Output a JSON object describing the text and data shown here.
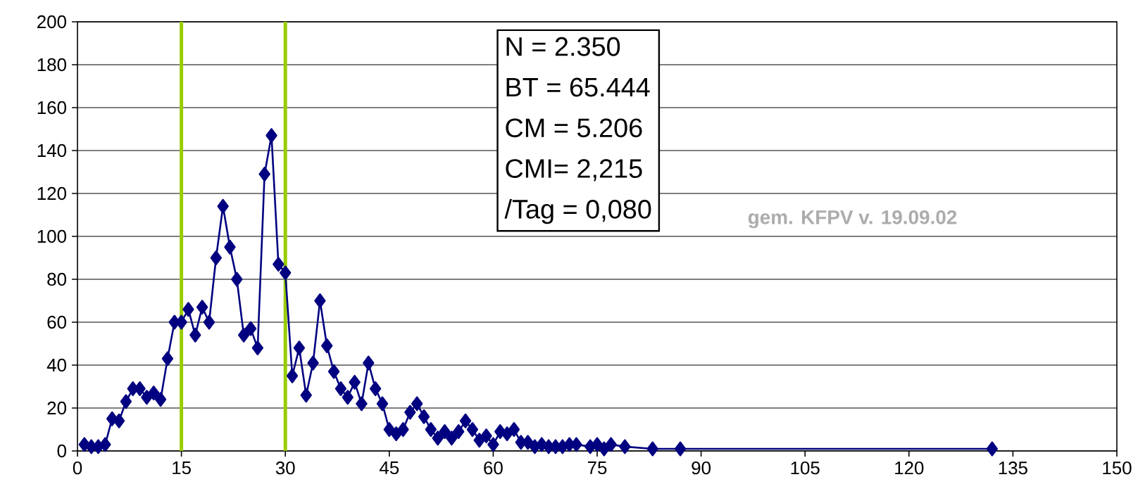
{
  "chart_data": {
    "type": "line",
    "x": [
      1,
      2,
      3,
      4,
      5,
      6,
      7,
      8,
      9,
      10,
      11,
      12,
      13,
      14,
      15,
      16,
      17,
      18,
      19,
      20,
      21,
      22,
      23,
      24,
      25,
      26,
      27,
      28,
      29,
      30,
      31,
      32,
      33,
      34,
      35,
      36,
      37,
      38,
      39,
      40,
      41,
      42,
      43,
      44,
      45,
      46,
      47,
      48,
      49,
      50,
      51,
      52,
      53,
      54,
      55,
      56,
      57,
      58,
      59,
      60,
      61,
      62,
      63,
      64,
      65,
      66,
      67,
      68,
      69,
      70,
      71,
      72,
      74,
      75,
      76,
      77,
      79,
      83,
      87,
      132
    ],
    "series": [
      {
        "color": "#000080",
        "values": [
          3,
          2,
          2,
          3,
          15,
          14,
          23,
          29,
          29,
          25,
          27,
          24,
          43,
          60,
          60,
          66,
          54,
          67,
          60,
          90,
          114,
          95,
          80,
          54,
          57,
          48,
          129,
          147,
          87,
          83,
          35,
          48,
          26,
          41,
          70,
          49,
          37,
          29,
          25,
          32,
          22,
          41,
          29,
          22,
          10,
          8,
          10,
          18,
          22,
          16,
          10,
          6,
          9,
          6,
          9,
          14,
          10,
          5,
          7,
          3,
          9,
          8,
          10,
          4,
          4,
          2,
          3,
          2,
          2,
          2,
          3,
          3,
          2,
          3,
          1,
          3,
          2,
          1,
          1,
          1
        ]
      }
    ],
    "xlim": [
      0,
      150
    ],
    "xticks": [
      0,
      15,
      30,
      45,
      60,
      75,
      90,
      105,
      120,
      135,
      150
    ],
    "ylim": [
      0,
      200
    ],
    "yticks": [
      0,
      20,
      40,
      60,
      80,
      100,
      120,
      140,
      160,
      180,
      200
    ],
    "grid": "y",
    "marker": "diamond",
    "line_style": "solid",
    "ref_lines": [
      {
        "axis": "x",
        "value": 15,
        "color": "#99cc00"
      },
      {
        "axis": "x",
        "value": 30,
        "color": "#99cc00"
      }
    ],
    "annotations": [
      "N = 2.350",
      "BT = 65.444",
      "CM = 5.206",
      "CMI= 2,215",
      "/Tag = 0,080",
      "gem. KFPV v. 19.09.02"
    ]
  }
}
